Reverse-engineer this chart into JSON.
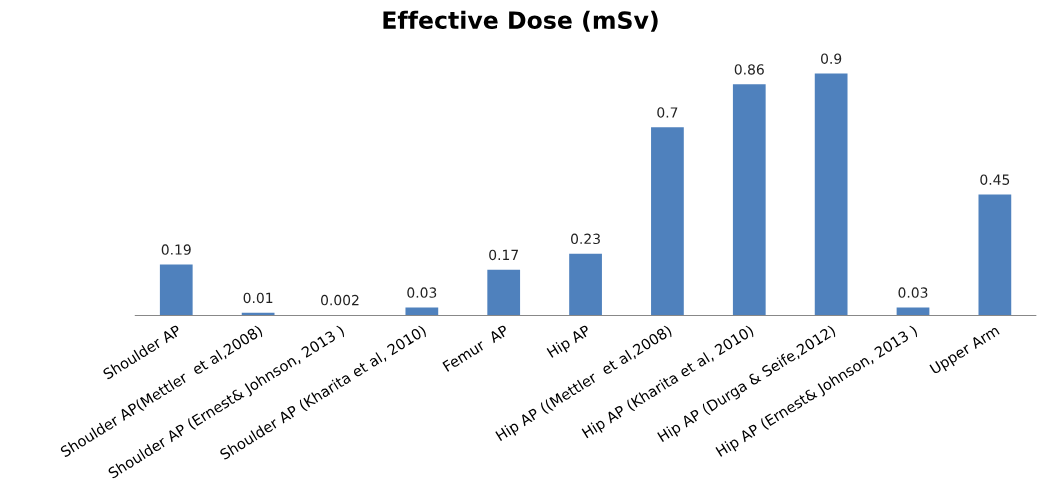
{
  "chart_data": {
    "type": "bar",
    "title": "Effective Dose (mSv)",
    "categories": [
      "Shoulder AP",
      "Shoulder AP(Mettler  et al,2008)",
      "Shoulder AP (Ernest& Johnson, 2013 )",
      "Shoulder AP (Kharita et al, 2010)",
      "Femur  AP",
      "Hip AP",
      "Hip AP ((Mettler  et al,2008)",
      "Hip AP (Kharita et al, 2010)",
      "Hip AP (Durga & Seife,2012)",
      "Hip AP (Ernest& Johnson, 2013 )",
      "Upper Arm"
    ],
    "values": [
      0.19,
      0.01,
      0.002,
      0.03,
      0.17,
      0.23,
      0.7,
      0.86,
      0.9,
      0.03,
      0.45
    ],
    "color": "#4f81bd",
    "data_labels": true,
    "grid": false,
    "legend": false
  }
}
